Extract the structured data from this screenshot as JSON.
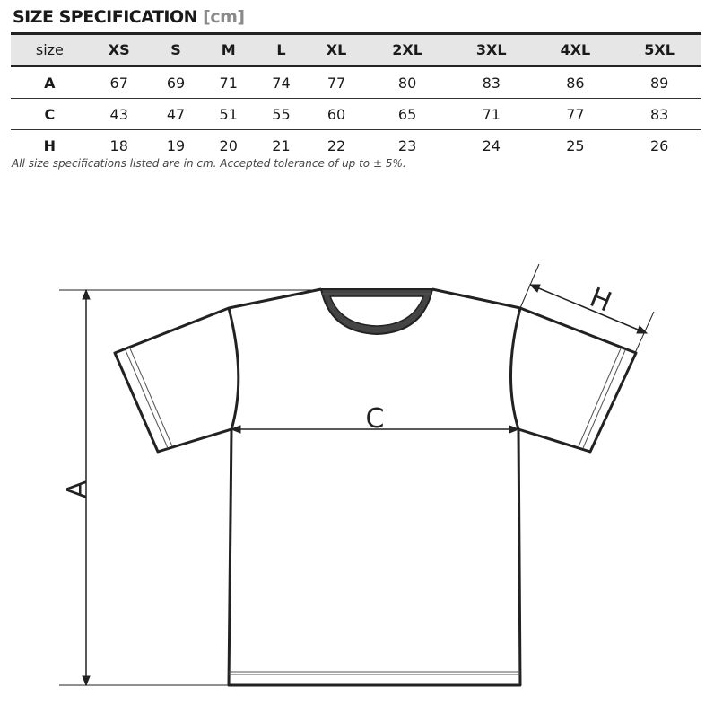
{
  "title": "SIZE SPECIFICATION",
  "unit": "[cm]",
  "columns": [
    "size",
    "XS",
    "S",
    "M",
    "L",
    "XL",
    "2XL",
    "3XL",
    "4XL",
    "5XL"
  ],
  "rows": [
    {
      "label": "A",
      "values": [
        "67",
        "69",
        "71",
        "74",
        "77",
        "80",
        "83",
        "86",
        "89"
      ]
    },
    {
      "label": "C",
      "values": [
        "43",
        "47",
        "51",
        "55",
        "60",
        "65",
        "71",
        "77",
        "83"
      ]
    },
    {
      "label": "H",
      "values": [
        "18",
        "19",
        "20",
        "21",
        "22",
        "23",
        "24",
        "25",
        "26"
      ]
    }
  ],
  "note": "All size specifications listed are in cm. Accepted tolerance of up to ± 5%.",
  "diagram": {
    "label_a": "A",
    "label_c": "C",
    "label_h": "H"
  }
}
